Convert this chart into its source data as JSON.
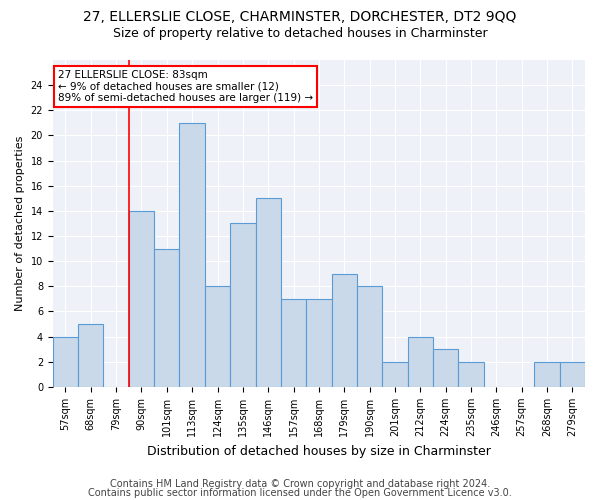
{
  "title1": "27, ELLERSLIE CLOSE, CHARMINSTER, DORCHESTER, DT2 9QQ",
  "title2": "Size of property relative to detached houses in Charminster",
  "xlabel": "Distribution of detached houses by size in Charminster",
  "ylabel": "Number of detached properties",
  "categories": [
    "57sqm",
    "68sqm",
    "79sqm",
    "90sqm",
    "101sqm",
    "113sqm",
    "124sqm",
    "135sqm",
    "146sqm",
    "157sqm",
    "168sqm",
    "179sqm",
    "190sqm",
    "201sqm",
    "212sqm",
    "224sqm",
    "235sqm",
    "246sqm",
    "257sqm",
    "268sqm",
    "279sqm"
  ],
  "values": [
    4,
    5,
    0,
    14,
    11,
    21,
    8,
    13,
    15,
    7,
    7,
    9,
    8,
    2,
    4,
    3,
    2,
    0,
    0,
    2,
    2
  ],
  "bar_color": "#c9d9ea",
  "bar_edge_color": "#5b9bd5",
  "red_line_x": 2.5,
  "annotation_text": "27 ELLERSLIE CLOSE: 83sqm\n← 9% of detached houses are smaller (12)\n89% of semi-detached houses are larger (119) →",
  "annotation_box_color": "white",
  "annotation_box_edge": "red",
  "footer1": "Contains HM Land Registry data © Crown copyright and database right 2024.",
  "footer2": "Contains public sector information licensed under the Open Government Licence v3.0.",
  "ylim": [
    0,
    26
  ],
  "ytick_step": 2,
  "bg_color": "#eef2f8",
  "grid_color": "white",
  "title1_fontsize": 10,
  "title2_fontsize": 9,
  "xlabel_fontsize": 9,
  "ylabel_fontsize": 8,
  "tick_fontsize": 7,
  "footer_fontsize": 7,
  "annotation_fontsize": 7.5
}
